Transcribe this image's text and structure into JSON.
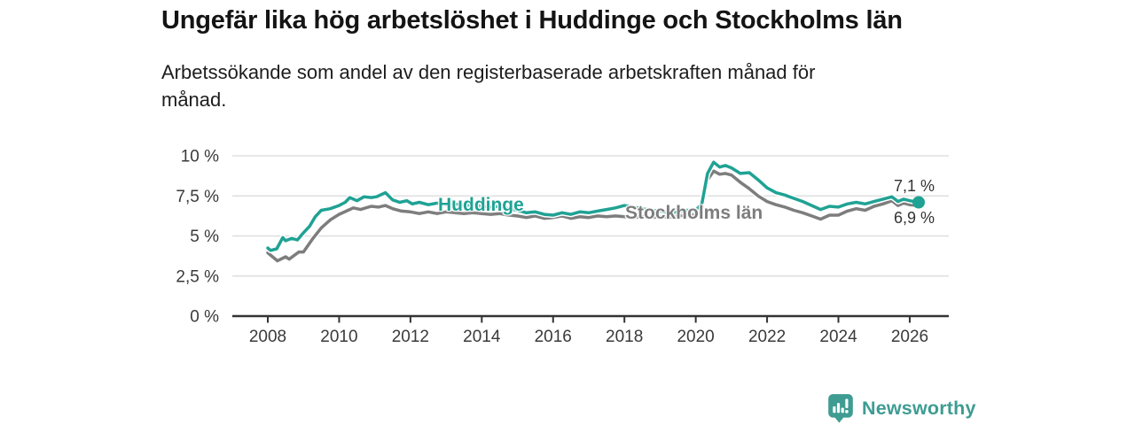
{
  "header": {
    "title": "Ungefär lika hög arbetslöshet i Huddinge och Stockholms län",
    "subtitle": "Arbetssökande som andel av den registerbaserade arbetskraften månad för\nmånad."
  },
  "chart_data": {
    "type": "line",
    "unit": "%",
    "grid": true,
    "legend_position": "inline-end-of-line-labels",
    "y_axis": {
      "range": [
        0,
        10
      ],
      "ticks": [
        {
          "value": 0,
          "label": "0 %"
        },
        {
          "value": 2.5,
          "label": "2,5 %"
        },
        {
          "value": 5,
          "label": "5 %"
        },
        {
          "value": 7.5,
          "label": "7,5 %"
        },
        {
          "value": 10,
          "label": "10 %"
        }
      ]
    },
    "x_axis": {
      "range": [
        2007,
        2027.1
      ],
      "ticks": [
        {
          "value": 2008,
          "label": "2008"
        },
        {
          "value": 2010,
          "label": "2010"
        },
        {
          "value": 2012,
          "label": "2012"
        },
        {
          "value": 2014,
          "label": "2014"
        },
        {
          "value": 2016,
          "label": "2016"
        },
        {
          "value": 2018,
          "label": "2018"
        },
        {
          "value": 2020,
          "label": "2020"
        },
        {
          "value": 2022,
          "label": "2022"
        },
        {
          "value": 2024,
          "label": "2024"
        },
        {
          "value": 2026,
          "label": "2026"
        }
      ]
    },
    "series": [
      {
        "id": "huddinge",
        "name": "Huddinge",
        "color": "#1fa294",
        "end_marker": true,
        "end_value_label": "7,1 %",
        "points": [
          [
            2008.0,
            4.25
          ],
          [
            2008.08,
            4.1
          ],
          [
            2008.25,
            4.2
          ],
          [
            2008.42,
            4.9
          ],
          [
            2008.5,
            4.7
          ],
          [
            2008.67,
            4.85
          ],
          [
            2008.83,
            4.75
          ],
          [
            2009.0,
            5.2
          ],
          [
            2009.17,
            5.6
          ],
          [
            2009.33,
            6.2
          ],
          [
            2009.5,
            6.6
          ],
          [
            2009.75,
            6.7
          ],
          [
            2010.0,
            6.9
          ],
          [
            2010.17,
            7.1
          ],
          [
            2010.3,
            7.4
          ],
          [
            2010.5,
            7.2
          ],
          [
            2010.7,
            7.45
          ],
          [
            2010.9,
            7.4
          ],
          [
            2011.05,
            7.45
          ],
          [
            2011.3,
            7.7
          ],
          [
            2011.5,
            7.25
          ],
          [
            2011.7,
            7.1
          ],
          [
            2011.9,
            7.2
          ],
          [
            2012.05,
            7.0
          ],
          [
            2012.25,
            7.1
          ],
          [
            2012.5,
            6.95
          ],
          [
            2012.75,
            7.05
          ],
          [
            2013.0,
            6.95
          ],
          [
            2013.25,
            7.0
          ],
          [
            2013.5,
            6.9
          ],
          [
            2013.75,
            6.95
          ],
          [
            2014.0,
            6.85
          ],
          [
            2014.25,
            6.8
          ],
          [
            2014.5,
            6.85
          ],
          [
            2014.75,
            6.7
          ],
          [
            2015.0,
            6.6
          ],
          [
            2015.25,
            6.45
          ],
          [
            2015.5,
            6.5
          ],
          [
            2015.75,
            6.35
          ],
          [
            2016.0,
            6.3
          ],
          [
            2016.25,
            6.45
          ],
          [
            2016.5,
            6.35
          ],
          [
            2016.75,
            6.5
          ],
          [
            2017.0,
            6.45
          ],
          [
            2017.25,
            6.55
          ],
          [
            2017.5,
            6.65
          ],
          [
            2017.75,
            6.75
          ],
          [
            2018.0,
            6.9
          ],
          [
            2018.25,
            6.8
          ],
          [
            2018.5,
            6.7
          ],
          [
            2018.75,
            6.6
          ],
          [
            2019.0,
            6.55
          ],
          [
            2019.25,
            6.45
          ],
          [
            2019.5,
            6.5
          ],
          [
            2019.75,
            6.6
          ],
          [
            2020.0,
            6.6
          ],
          [
            2020.17,
            7.0
          ],
          [
            2020.33,
            8.9
          ],
          [
            2020.5,
            9.6
          ],
          [
            2020.67,
            9.3
          ],
          [
            2020.83,
            9.4
          ],
          [
            2021.0,
            9.25
          ],
          [
            2021.25,
            8.9
          ],
          [
            2021.5,
            8.95
          ],
          [
            2021.75,
            8.5
          ],
          [
            2022.0,
            8.0
          ],
          [
            2022.25,
            7.7
          ],
          [
            2022.5,
            7.55
          ],
          [
            2022.75,
            7.35
          ],
          [
            2023.0,
            7.15
          ],
          [
            2023.25,
            6.9
          ],
          [
            2023.5,
            6.65
          ],
          [
            2023.75,
            6.85
          ],
          [
            2024.0,
            6.8
          ],
          [
            2024.25,
            7.0
          ],
          [
            2024.5,
            7.1
          ],
          [
            2024.75,
            7.0
          ],
          [
            2025.0,
            7.15
          ],
          [
            2025.25,
            7.3
          ],
          [
            2025.5,
            7.45
          ],
          [
            2025.67,
            7.15
          ],
          [
            2025.83,
            7.3
          ],
          [
            2026.0,
            7.2
          ],
          [
            2026.25,
            7.1
          ]
        ]
      },
      {
        "id": "stockholms-lan",
        "name": "Stockholms län",
        "color": "#7d7d7d",
        "end_marker": false,
        "end_value_label": "6,9 %",
        "points": [
          [
            2008.0,
            3.95
          ],
          [
            2008.27,
            3.45
          ],
          [
            2008.5,
            3.7
          ],
          [
            2008.6,
            3.55
          ],
          [
            2008.87,
            4.0
          ],
          [
            2009.0,
            4.0
          ],
          [
            2009.25,
            4.8
          ],
          [
            2009.5,
            5.5
          ],
          [
            2009.75,
            6.0
          ],
          [
            2010.0,
            6.35
          ],
          [
            2010.25,
            6.6
          ],
          [
            2010.4,
            6.75
          ],
          [
            2010.6,
            6.65
          ],
          [
            2010.9,
            6.85
          ],
          [
            2011.1,
            6.8
          ],
          [
            2011.3,
            6.9
          ],
          [
            2011.5,
            6.7
          ],
          [
            2011.75,
            6.55
          ],
          [
            2012.0,
            6.5
          ],
          [
            2012.25,
            6.4
          ],
          [
            2012.5,
            6.5
          ],
          [
            2012.75,
            6.4
          ],
          [
            2013.0,
            6.5
          ],
          [
            2013.25,
            6.45
          ],
          [
            2013.5,
            6.4
          ],
          [
            2013.75,
            6.45
          ],
          [
            2014.0,
            6.4
          ],
          [
            2014.25,
            6.35
          ],
          [
            2014.5,
            6.4
          ],
          [
            2014.75,
            6.3
          ],
          [
            2015.0,
            6.25
          ],
          [
            2015.25,
            6.15
          ],
          [
            2015.5,
            6.25
          ],
          [
            2015.75,
            6.1
          ],
          [
            2016.0,
            6.15
          ],
          [
            2016.25,
            6.25
          ],
          [
            2016.5,
            6.1
          ],
          [
            2016.75,
            6.2
          ],
          [
            2017.0,
            6.15
          ],
          [
            2017.25,
            6.25
          ],
          [
            2017.5,
            6.2
          ],
          [
            2017.75,
            6.25
          ],
          [
            2018.0,
            6.2
          ],
          [
            2018.25,
            6.15
          ],
          [
            2018.5,
            6.2
          ],
          [
            2018.75,
            6.15
          ],
          [
            2019.0,
            6.2
          ],
          [
            2019.25,
            6.15
          ],
          [
            2019.5,
            6.25
          ],
          [
            2019.75,
            6.3
          ],
          [
            2020.0,
            6.35
          ],
          [
            2020.17,
            6.7
          ],
          [
            2020.33,
            8.5
          ],
          [
            2020.5,
            9.05
          ],
          [
            2020.67,
            8.85
          ],
          [
            2020.83,
            8.9
          ],
          [
            2021.0,
            8.8
          ],
          [
            2021.25,
            8.35
          ],
          [
            2021.5,
            7.95
          ],
          [
            2021.75,
            7.5
          ],
          [
            2022.0,
            7.15
          ],
          [
            2022.25,
            6.95
          ],
          [
            2022.5,
            6.8
          ],
          [
            2022.75,
            6.6
          ],
          [
            2023.0,
            6.45
          ],
          [
            2023.25,
            6.25
          ],
          [
            2023.5,
            6.05
          ],
          [
            2023.75,
            6.3
          ],
          [
            2024.0,
            6.3
          ],
          [
            2024.25,
            6.55
          ],
          [
            2024.5,
            6.7
          ],
          [
            2024.75,
            6.6
          ],
          [
            2025.0,
            6.85
          ],
          [
            2025.25,
            7.0
          ],
          [
            2025.5,
            7.2
          ],
          [
            2025.67,
            6.9
          ],
          [
            2025.83,
            7.05
          ],
          [
            2026.0,
            6.95
          ],
          [
            2026.25,
            6.9
          ]
        ]
      }
    ],
    "end_labels": {
      "huddinge": "7,1 %",
      "stockholm": "6,9 %"
    },
    "colors": {
      "grid": "#d9d9d9",
      "axis": "#333333",
      "tick_label": "#3a3a3a"
    }
  },
  "footer": {
    "brand": "Newsworthy",
    "brand_color": "#3e9c92"
  }
}
